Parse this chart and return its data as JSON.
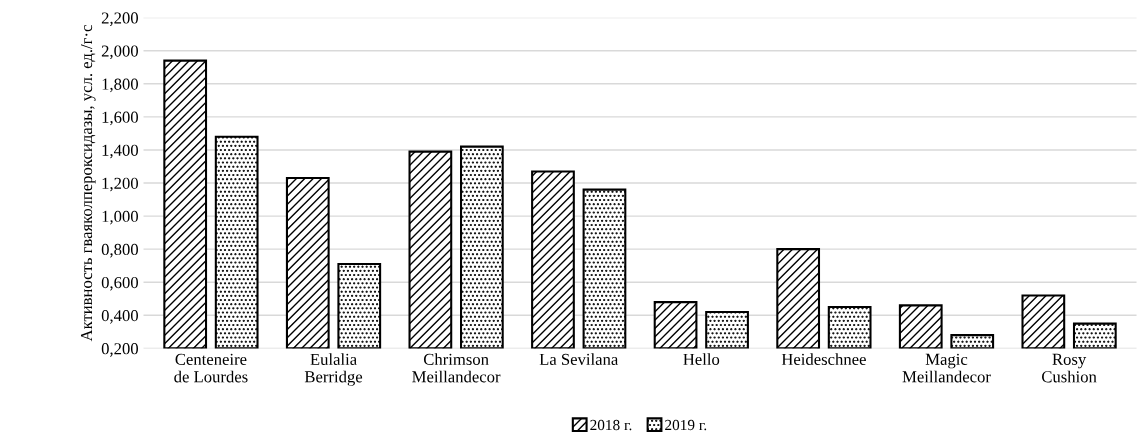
{
  "chart_data": {
    "type": "bar",
    "ylabel": "Активность гваяколпероксидазы, усл. ед./г·с",
    "categories": [
      "Centeneire\nde Lourdes",
      "Eulalia\nBerridge",
      "Chrimson\nMeillandecor",
      "La Sevilana",
      "Hello",
      "Heideschnee",
      "Magic\nMeillandecor",
      "Rosy\nCushion"
    ],
    "series": [
      {
        "name": "2018 г.",
        "color": "#000000",
        "values": [
          1.94,
          1.23,
          1.39,
          1.27,
          0.48,
          0.8,
          0.46,
          0.52
        ]
      },
      {
        "name": "2019 г.",
        "color": "#000000",
        "values": [
          1.48,
          0.71,
          1.42,
          1.16,
          0.42,
          0.45,
          0.28,
          0.35
        ]
      }
    ],
    "ylim": [
      0.2,
      2.2
    ],
    "yticks": [
      {
        "value": 0.2,
        "label": "0,200"
      },
      {
        "value": 0.4,
        "label": "0,400"
      },
      {
        "value": 0.6,
        "label": "0,600"
      },
      {
        "value": 0.8,
        "label": "0,800"
      },
      {
        "value": 1.0,
        "label": "1,000"
      },
      {
        "value": 1.2,
        "label": "1,200"
      },
      {
        "value": 1.4,
        "label": "1,400"
      },
      {
        "value": 1.6,
        "label": "1,600"
      },
      {
        "value": 1.8,
        "label": "1,800"
      },
      {
        "value": 2.0,
        "label": "2,000"
      },
      {
        "value": 2.2,
        "label": "2,200"
      }
    ],
    "grid": "y",
    "legend": "bottom"
  }
}
